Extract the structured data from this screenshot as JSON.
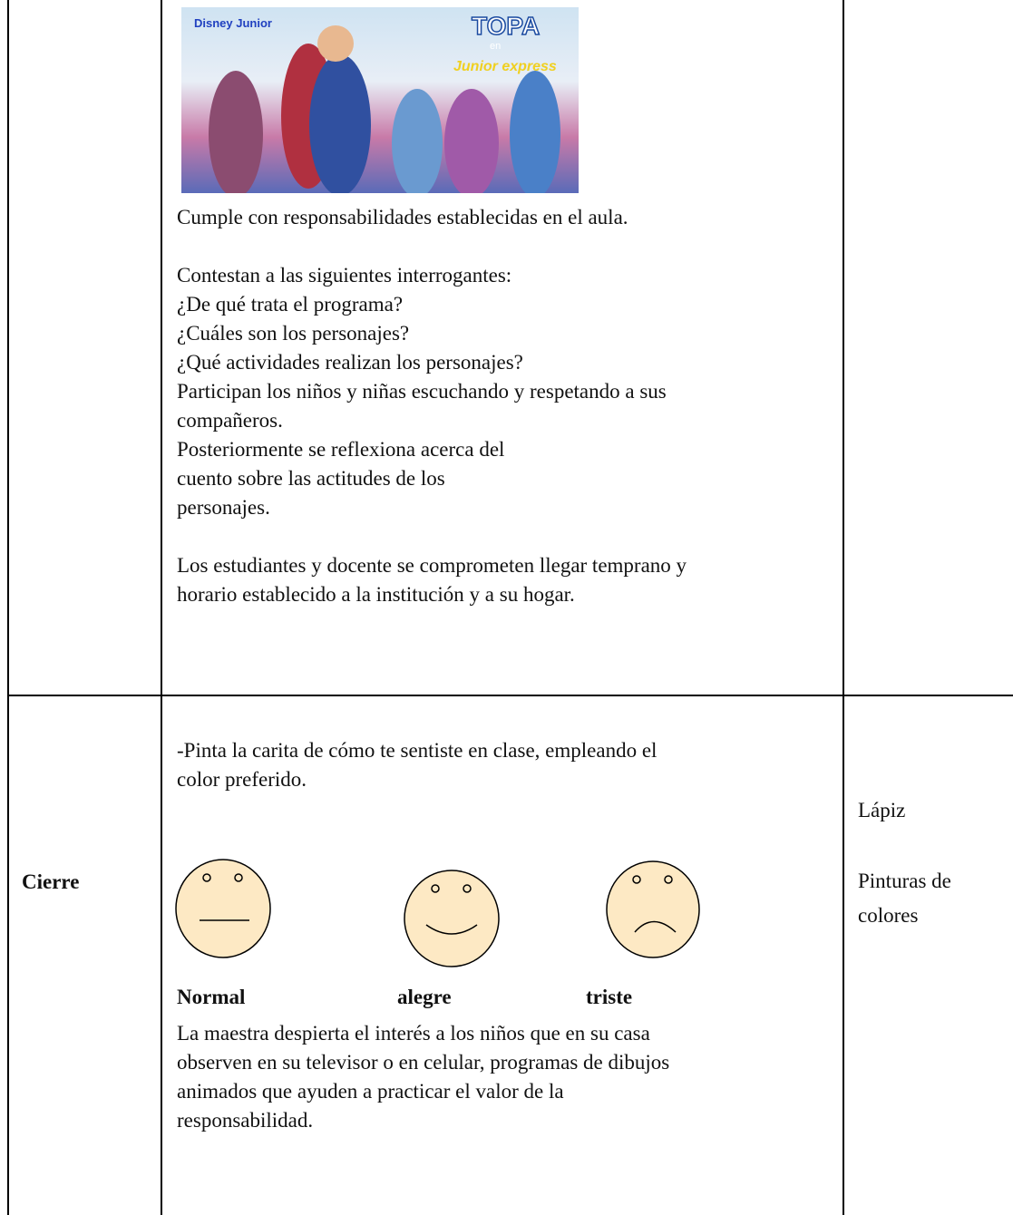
{
  "image": {
    "logo_left": "Disney Junior",
    "logo_right_top": "TOPA",
    "logo_right_small": "en",
    "logo_right_bottom": "Junior express"
  },
  "table": {
    "rows": [
      {
        "cells": [
          "",
          [
            "Cumple con responsabilidades establecidas en el aula.",
            "",
            "Contestan a las siguientes interrogantes:",
            "¿De qué trata el programa?",
            "¿Cuáles son los personajes?",
            "¿Qué actividades realizan los personajes?",
            "Participan los niños y niñas escuchando y respetando a sus",
            "compañeros.",
            "Posteriormente se reflexiona acerca del",
            "cuento sobre las actitudes de los",
            "personajes.",
            "",
            "Los estudiantes y docente se comprometen llegar temprano y",
            "horario establecido a la institución y a su hogar."
          ],
          ""
        ]
      },
      {
        "cells": [
          "Cierre",
          {
            "intro": [
              "-Pinta la carita de cómo te sentiste en clase, empleando el",
              "color preferido."
            ],
            "faces": [
              "Normal",
              "alegre",
              "triste"
            ],
            "outro": [
              "La maestra despierta el interés a los niños que en su casa",
              "observen en su televisor o en celular, programas de dibujos",
              "animados que ayuden a practicar el valor de la",
              "responsabilidad."
            ]
          },
          [
            "Lápiz",
            "Pinturas de",
            "colores"
          ]
        ]
      }
    ]
  }
}
